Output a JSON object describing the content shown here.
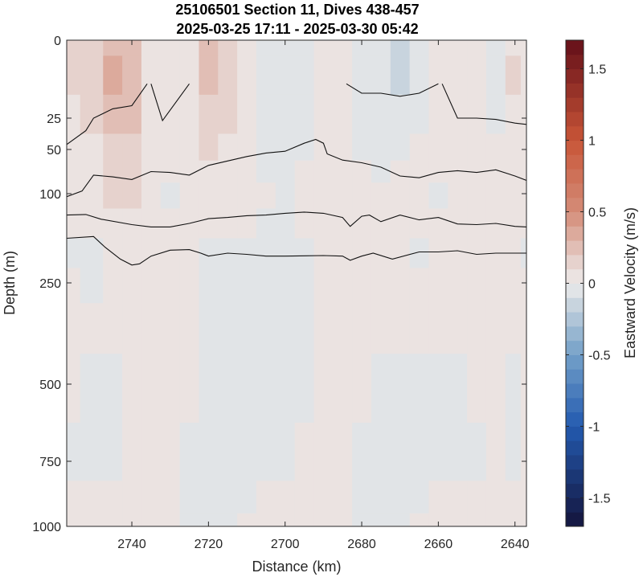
{
  "chart_data": {
    "type": "heatmap",
    "title": "25106501 Section 11, Dives 438-457",
    "subtitle": "2025-03-25 17:11 - 2025-03-30 05:42",
    "xlabel": "Distance (km)",
    "ylabel": "Depth (m)",
    "x_reversed": true,
    "xlim": [
      2757,
      2637
    ],
    "x_ticks": [
      2740,
      2720,
      2700,
      2680,
      2660,
      2640
    ],
    "x_tick_labels": [
      "2740",
      "2720",
      "2700",
      "2680",
      "2660",
      "2640"
    ],
    "y_ticks": [
      0,
      25,
      50,
      100,
      250,
      500,
      750,
      1000
    ],
    "y_tick_labels": [
      "0",
      "25",
      "50",
      "100",
      "250",
      "500",
      "750",
      "1000"
    ],
    "y_scale": "stretched (nonlinear) depth axis",
    "colorbar": {
      "label": "Eastward Velocity (m/s)",
      "range": [
        -1.7,
        1.7
      ],
      "ticks": [
        -1.5,
        -1,
        -0.5,
        0,
        0.5,
        1,
        1.5
      ],
      "tick_labels": [
        "-1.5",
        "-1",
        "-0.5",
        "0",
        "0.5",
        "1",
        "1.5"
      ],
      "colormap": "diverging blue-white-red",
      "levels": 34
    },
    "velocity_field": {
      "x": [
        2757,
        2750,
        2745,
        2740,
        2735,
        2730,
        2725,
        2720,
        2715,
        2710,
        2705,
        2700,
        2695,
        2690,
        2685,
        2680,
        2675,
        2670,
        2665,
        2660,
        2655,
        2650,
        2645,
        2640,
        2637
      ],
      "depth": [
        0,
        10,
        25,
        50,
        75,
        100,
        150,
        200,
        250,
        350,
        500,
        750,
        900,
        1000
      ],
      "values": [
        [
          0.15,
          0.1,
          0.25,
          0.2,
          0.05,
          0.0,
          0.05,
          0.2,
          0.1,
          0.0,
          -0.05,
          -0.1,
          -0.05,
          0.05,
          0.0,
          -0.05,
          -0.1,
          -0.2,
          -0.1,
          0.0,
          0.05,
          0.0,
          -0.05,
          0.05,
          0.0
        ],
        [
          0.1,
          0.1,
          0.3,
          0.25,
          0.05,
          0.0,
          0.05,
          0.2,
          0.1,
          0.0,
          -0.05,
          -0.1,
          -0.05,
          0.0,
          0.0,
          -0.05,
          -0.1,
          -0.15,
          -0.1,
          0.0,
          0.05,
          0.0,
          -0.05,
          0.1,
          0.0
        ],
        [
          0.05,
          0.1,
          0.25,
          0.2,
          0.05,
          0.0,
          0.05,
          0.15,
          0.1,
          0.0,
          -0.05,
          -0.1,
          -0.1,
          0.0,
          0.0,
          -0.05,
          -0.1,
          -0.1,
          -0.05,
          0.0,
          0.0,
          0.0,
          -0.05,
          0.05,
          0.0
        ],
        [
          0.05,
          0.05,
          0.15,
          0.15,
          0.05,
          0.0,
          0.05,
          0.1,
          0.05,
          0.0,
          -0.05,
          -0.05,
          -0.05,
          0.0,
          0.0,
          -0.05,
          -0.05,
          -0.05,
          0.0,
          0.0,
          0.0,
          0.0,
          0.0,
          0.05,
          0.0
        ],
        [
          0.05,
          0.05,
          0.1,
          0.1,
          0.05,
          0.0,
          0.0,
          0.05,
          0.05,
          0.0,
          -0.05,
          -0.05,
          0.0,
          0.0,
          0.0,
          0.0,
          -0.05,
          0.0,
          0.0,
          0.0,
          0.0,
          0.0,
          0.0,
          0.0,
          0.0
        ],
        [
          0.05,
          0.05,
          0.1,
          0.1,
          0.05,
          -0.05,
          0.0,
          0.05,
          0.05,
          0.0,
          0.0,
          -0.05,
          0.0,
          0.0,
          0.0,
          0.0,
          0.0,
          0.0,
          0.0,
          -0.05,
          0.0,
          0.0,
          0.05,
          0.05,
          0.0
        ],
        [
          0.0,
          0.0,
          0.05,
          0.05,
          0.0,
          0.0,
          0.0,
          0.0,
          0.0,
          0.0,
          -0.05,
          -0.05,
          0.0,
          0.0,
          0.05,
          0.0,
          0.0,
          0.0,
          0.0,
          0.0,
          0.0,
          0.05,
          0.05,
          0.0,
          0.0
        ],
        [
          -0.05,
          -0.05,
          0.0,
          0.05,
          0.05,
          0.0,
          0.0,
          -0.05,
          -0.05,
          -0.05,
          -0.05,
          -0.05,
          -0.05,
          0.0,
          0.05,
          0.05,
          0.0,
          0.0,
          -0.05,
          0.0,
          0.0,
          0.0,
          0.0,
          0.0,
          -0.05
        ],
        [
          0.0,
          -0.05,
          0.0,
          0.05,
          0.05,
          0.0,
          0.0,
          -0.05,
          -0.05,
          -0.05,
          -0.1,
          -0.05,
          -0.05,
          0.0,
          0.05,
          0.05,
          0.0,
          0.0,
          0.0,
          0.0,
          0.0,
          0.0,
          0.0,
          0.0,
          0.0
        ],
        [
          0.0,
          0.0,
          0.0,
          0.05,
          0.05,
          0.0,
          0.0,
          -0.05,
          -0.05,
          -0.05,
          -0.05,
          -0.1,
          -0.05,
          0.0,
          0.05,
          0.0,
          0.0,
          0.0,
          0.0,
          0.0,
          0.0,
          0.0,
          0.0,
          0.0,
          0.0
        ],
        [
          0.0,
          -0.05,
          -0.05,
          0.0,
          0.0,
          0.0,
          0.0,
          -0.05,
          -0.1,
          -0.05,
          -0.05,
          -0.05,
          -0.05,
          0.0,
          0.0,
          0.0,
          -0.05,
          -0.05,
          -0.05,
          -0.05,
          -0.05,
          0.0,
          0.0,
          -0.05,
          0.0
        ],
        [
          -0.05,
          -0.05,
          -0.05,
          0.0,
          0.0,
          0.0,
          -0.05,
          -0.1,
          -0.1,
          -0.05,
          -0.05,
          -0.05,
          0.0,
          0.0,
          0.0,
          -0.05,
          -0.05,
          -0.05,
          -0.05,
          -0.05,
          -0.05,
          -0.05,
          0.0,
          -0.05,
          0.0
        ],
        [
          0.0,
          0.0,
          0.0,
          0.05,
          0.0,
          0.0,
          -0.05,
          -0.1,
          -0.05,
          -0.05,
          0.0,
          0.0,
          0.0,
          0.0,
          0.0,
          -0.05,
          -0.05,
          -0.05,
          -0.05,
          0.0,
          0.0,
          0.0,
          0.0,
          0.0,
          0.0
        ],
        [
          0.0,
          0.0,
          0.0,
          0.0,
          0.0,
          0.0,
          -0.05,
          -0.1,
          -0.05,
          0.0,
          0.0,
          0.0,
          0.0,
          0.0,
          0.0,
          -0.05,
          -0.05,
          -0.05,
          0.0,
          0.0,
          0.0,
          0.0,
          0.0,
          0.0,
          0.0
        ]
      ]
    },
    "contour_lines": [
      {
        "segments": [
          [
            [
              2757,
              46
            ],
            [
              2752,
              35
            ],
            [
              2750,
              25
            ],
            [
              2745,
              22
            ],
            [
              2740,
              21
            ],
            [
              2736,
              14
            ]
          ],
          [
            [
              2735,
              14
            ],
            [
              2732,
              27
            ],
            [
              2725,
              14
            ]
          ],
          [
            [
              2684,
              14
            ],
            [
              2680,
              17
            ],
            [
              2675,
              17
            ],
            [
              2670,
              18
            ],
            [
              2665,
              17
            ],
            [
              2660,
              14
            ]
          ],
          [
            [
              2659,
              14
            ],
            [
              2655,
              25
            ],
            [
              2650,
              25
            ],
            [
              2645,
              26
            ],
            [
              2640,
              29
            ],
            [
              2637,
              30
            ]
          ]
        ]
      },
      {
        "segments": [
          [
            [
              2757,
              105
            ],
            [
              2753,
              97
            ],
            [
              2750,
              79
            ],
            [
              2745,
              81
            ],
            [
              2740,
              84
            ],
            [
              2735,
              75
            ],
            [
              2730,
              76
            ],
            [
              2725,
              79
            ],
            [
              2720,
              68
            ],
            [
              2710,
              58
            ],
            [
              2705,
              54
            ],
            [
              2700,
              52
            ],
            [
              2695,
              45
            ],
            [
              2692,
              42
            ],
            [
              2690,
              45
            ],
            [
              2689,
              55
            ],
            [
              2685,
              62
            ],
            [
              2680,
              65
            ],
            [
              2675,
              70
            ],
            [
              2670,
              80
            ],
            [
              2665,
              82
            ],
            [
              2660,
              76
            ],
            [
              2655,
              74
            ],
            [
              2650,
              76
            ],
            [
              2645,
              73
            ],
            [
              2640,
              80
            ],
            [
              2637,
              85
            ]
          ]
        ]
      },
      {
        "segments": [
          [
            [
              2757,
              136
            ],
            [
              2752,
              135
            ],
            [
              2748,
              143
            ],
            [
              2740,
              152
            ],
            [
              2735,
              156
            ],
            [
              2730,
              156
            ],
            [
              2725,
              150
            ],
            [
              2720,
              142
            ],
            [
              2715,
              140
            ],
            [
              2710,
              137
            ],
            [
              2705,
              136
            ],
            [
              2700,
              133
            ],
            [
              2695,
              131
            ],
            [
              2690,
              133
            ],
            [
              2685,
              140
            ],
            [
              2683,
              155
            ],
            [
              2680,
              138
            ],
            [
              2678,
              136
            ],
            [
              2675,
              147
            ],
            [
              2670,
              136
            ],
            [
              2665,
              144
            ],
            [
              2660,
              140
            ],
            [
              2655,
              151
            ],
            [
              2650,
              152
            ],
            [
              2645,
              150
            ],
            [
              2640,
              155
            ],
            [
              2637,
              156
            ]
          ]
        ]
      },
      {
        "segments": [
          [
            [
              2757,
              175
            ],
            [
              2750,
              172
            ],
            [
              2747,
              190
            ],
            [
              2743,
              210
            ],
            [
              2740,
              220
            ],
            [
              2738,
              218
            ],
            [
              2735,
              205
            ],
            [
              2730,
              195
            ],
            [
              2725,
              194
            ],
            [
              2722,
              200
            ],
            [
              2720,
              205
            ],
            [
              2715,
              200
            ],
            [
              2710,
              202
            ],
            [
              2705,
              205
            ],
            [
              2700,
              205
            ],
            [
              2690,
              204
            ],
            [
              2685,
              205
            ],
            [
              2683,
              212
            ],
            [
              2680,
              205
            ],
            [
              2677,
              200
            ],
            [
              2672,
              210
            ],
            [
              2665,
              198
            ],
            [
              2660,
              198
            ],
            [
              2655,
              196
            ],
            [
              2650,
              202
            ],
            [
              2645,
              200
            ],
            [
              2640,
              200
            ],
            [
              2637,
              200
            ]
          ]
        ]
      }
    ]
  }
}
